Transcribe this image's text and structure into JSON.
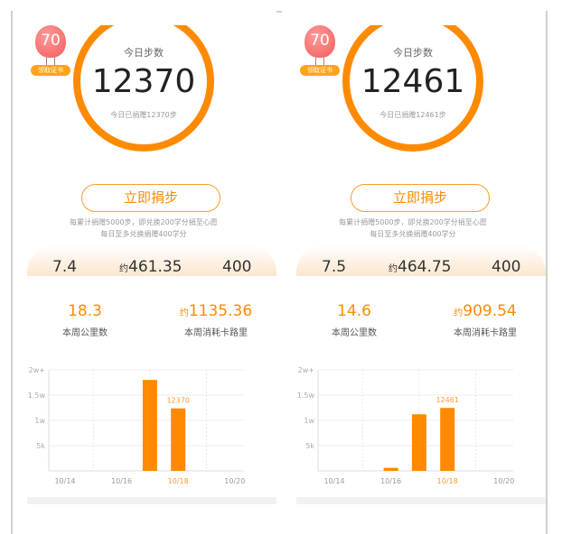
{
  "panels": [
    {
      "badge": {
        "level": "70",
        "label": "领取证书",
        "icon": "hot-air-balloon-icon"
      },
      "today": {
        "title": "今日步数",
        "steps": "12370",
        "donated": "今日已捐赠12370步"
      },
      "donate_button": "立即捐步",
      "notes": [
        "每累计捐赠5000步，即兑换200学分捐至心愿",
        "每日至多兑换捐赠400学分"
      ],
      "stats": {
        "km": "7.4",
        "approx": "约",
        "kcal": "461.35",
        "credits": "400"
      },
      "week": {
        "km": "18.3",
        "km_label": "本周公里数",
        "approx": "约",
        "kcal": "1135.36",
        "kcal_label": "本周消耗卡路里"
      },
      "chart_data": {
        "type": "bar",
        "categories": [
          "10/14",
          "10/15",
          "10/16",
          "10/17",
          "10/18",
          "10/19",
          "10/20"
        ],
        "x_tick_labels": [
          "10/14",
          "10/16",
          "10/18",
          "10/20"
        ],
        "highlight": "10/18",
        "values": [
          0,
          0,
          0,
          18000,
          12370,
          0,
          0
        ],
        "data_label": "12370",
        "y_ticks": [
          "5k",
          "1w",
          "1.5w",
          "2w+"
        ],
        "ylim": [
          0,
          20000
        ],
        "grid": true,
        "color": "#ff8a00"
      }
    },
    {
      "badge": {
        "level": "70",
        "label": "领取证书",
        "icon": "hot-air-balloon-icon"
      },
      "today": {
        "title": "今日步数",
        "steps": "12461",
        "donated": "今日已捐赠12461步"
      },
      "donate_button": "立即捐步",
      "notes": [
        "每累计捐赠5000步，即兑换200学分捐至心愿",
        "每日至多兑换捐赠400学分"
      ],
      "stats": {
        "km": "7.5",
        "approx": "约",
        "kcal": "464.75",
        "credits": "400"
      },
      "week": {
        "km": "14.6",
        "km_label": "本周公里数",
        "approx": "约",
        "kcal": "909.54",
        "kcal_label": "本周消耗卡路里"
      },
      "chart_data": {
        "type": "bar",
        "categories": [
          "10/14",
          "10/15",
          "10/16",
          "10/17",
          "10/18",
          "10/19",
          "10/20"
        ],
        "x_tick_labels": [
          "10/14",
          "10/16",
          "10/18",
          "10/20"
        ],
        "highlight": "10/18",
        "values": [
          0,
          0,
          600,
          11200,
          12461,
          0,
          0
        ],
        "data_label": "12461",
        "y_ticks": [
          "5k",
          "1w",
          "1.5w",
          "2w+"
        ],
        "ylim": [
          0,
          20000
        ],
        "grid": true,
        "color": "#ff8a00"
      }
    }
  ]
}
